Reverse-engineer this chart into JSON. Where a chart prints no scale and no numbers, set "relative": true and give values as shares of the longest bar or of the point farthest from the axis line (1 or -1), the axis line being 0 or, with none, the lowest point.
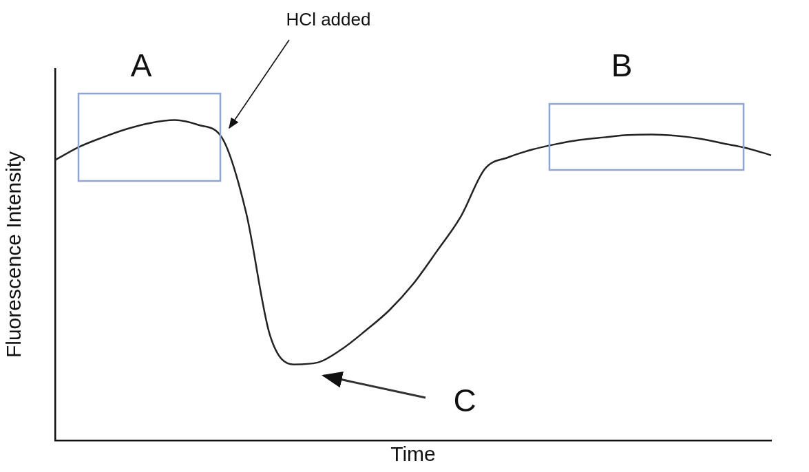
{
  "chart_data": {
    "type": "line",
    "xlabel": "Time",
    "ylabel": "Fluorescence Intensity",
    "relative": true,
    "marker": "none",
    "legend": false,
    "grid": false,
    "categories": [
      null,
      null,
      null,
      null,
      null,
      null,
      null,
      null,
      null,
      null,
      null,
      null,
      null,
      null,
      null,
      null,
      null,
      null,
      null,
      null,
      null,
      null,
      null,
      null,
      null,
      null,
      null,
      null,
      null,
      null,
      null
    ],
    "series": [
      {
        "color": "#222222",
        "values": [
          0.875,
          0.916,
          0.946,
          0.972,
          0.991,
          1,
          0.985,
          0.944,
          0.712,
          0.329,
          0.237,
          0.243,
          0.284,
          0.342,
          0.406,
          0.488,
          0.591,
          0.699,
          0.847,
          0.884,
          0.908,
          0.925,
          0.938,
          0.946,
          0.953,
          0.955,
          0.951,
          0.942,
          0.927,
          0.912,
          0.89
        ]
      }
    ],
    "annotations": [
      "HCl added",
      "A",
      "B",
      "C"
    ]
  }
}
